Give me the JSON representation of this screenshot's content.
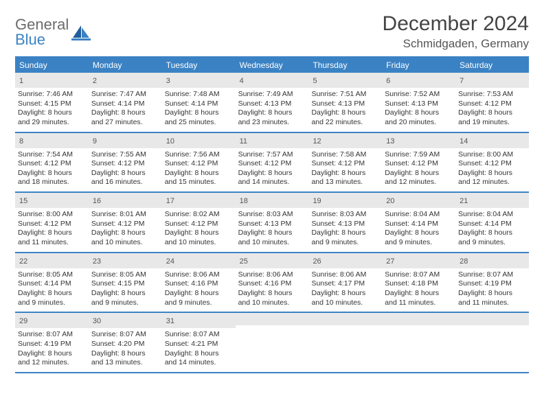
{
  "logo": {
    "word1": "General",
    "word2": "Blue"
  },
  "title": "December 2024",
  "location": "Schmidgaden, Germany",
  "colors": {
    "brand_blue": "#3b82c4",
    "header_text": "#ffffff",
    "daynum_bg": "#e8e8e8",
    "body_text": "#333333",
    "logo_gray": "#6b6b6b"
  },
  "day_headers": [
    "Sunday",
    "Monday",
    "Tuesday",
    "Wednesday",
    "Thursday",
    "Friday",
    "Saturday"
  ],
  "weeks": [
    [
      {
        "n": "1",
        "sr": "Sunrise: 7:46 AM",
        "ss": "Sunset: 4:15 PM",
        "d1": "Daylight: 8 hours",
        "d2": "and 29 minutes."
      },
      {
        "n": "2",
        "sr": "Sunrise: 7:47 AM",
        "ss": "Sunset: 4:14 PM",
        "d1": "Daylight: 8 hours",
        "d2": "and 27 minutes."
      },
      {
        "n": "3",
        "sr": "Sunrise: 7:48 AM",
        "ss": "Sunset: 4:14 PM",
        "d1": "Daylight: 8 hours",
        "d2": "and 25 minutes."
      },
      {
        "n": "4",
        "sr": "Sunrise: 7:49 AM",
        "ss": "Sunset: 4:13 PM",
        "d1": "Daylight: 8 hours",
        "d2": "and 23 minutes."
      },
      {
        "n": "5",
        "sr": "Sunrise: 7:51 AM",
        "ss": "Sunset: 4:13 PM",
        "d1": "Daylight: 8 hours",
        "d2": "and 22 minutes."
      },
      {
        "n": "6",
        "sr": "Sunrise: 7:52 AM",
        "ss": "Sunset: 4:13 PM",
        "d1": "Daylight: 8 hours",
        "d2": "and 20 minutes."
      },
      {
        "n": "7",
        "sr": "Sunrise: 7:53 AM",
        "ss": "Sunset: 4:12 PM",
        "d1": "Daylight: 8 hours",
        "d2": "and 19 minutes."
      }
    ],
    [
      {
        "n": "8",
        "sr": "Sunrise: 7:54 AM",
        "ss": "Sunset: 4:12 PM",
        "d1": "Daylight: 8 hours",
        "d2": "and 18 minutes."
      },
      {
        "n": "9",
        "sr": "Sunrise: 7:55 AM",
        "ss": "Sunset: 4:12 PM",
        "d1": "Daylight: 8 hours",
        "d2": "and 16 minutes."
      },
      {
        "n": "10",
        "sr": "Sunrise: 7:56 AM",
        "ss": "Sunset: 4:12 PM",
        "d1": "Daylight: 8 hours",
        "d2": "and 15 minutes."
      },
      {
        "n": "11",
        "sr": "Sunrise: 7:57 AM",
        "ss": "Sunset: 4:12 PM",
        "d1": "Daylight: 8 hours",
        "d2": "and 14 minutes."
      },
      {
        "n": "12",
        "sr": "Sunrise: 7:58 AM",
        "ss": "Sunset: 4:12 PM",
        "d1": "Daylight: 8 hours",
        "d2": "and 13 minutes."
      },
      {
        "n": "13",
        "sr": "Sunrise: 7:59 AM",
        "ss": "Sunset: 4:12 PM",
        "d1": "Daylight: 8 hours",
        "d2": "and 12 minutes."
      },
      {
        "n": "14",
        "sr": "Sunrise: 8:00 AM",
        "ss": "Sunset: 4:12 PM",
        "d1": "Daylight: 8 hours",
        "d2": "and 12 minutes."
      }
    ],
    [
      {
        "n": "15",
        "sr": "Sunrise: 8:00 AM",
        "ss": "Sunset: 4:12 PM",
        "d1": "Daylight: 8 hours",
        "d2": "and 11 minutes."
      },
      {
        "n": "16",
        "sr": "Sunrise: 8:01 AM",
        "ss": "Sunset: 4:12 PM",
        "d1": "Daylight: 8 hours",
        "d2": "and 10 minutes."
      },
      {
        "n": "17",
        "sr": "Sunrise: 8:02 AM",
        "ss": "Sunset: 4:12 PM",
        "d1": "Daylight: 8 hours",
        "d2": "and 10 minutes."
      },
      {
        "n": "18",
        "sr": "Sunrise: 8:03 AM",
        "ss": "Sunset: 4:13 PM",
        "d1": "Daylight: 8 hours",
        "d2": "and 10 minutes."
      },
      {
        "n": "19",
        "sr": "Sunrise: 8:03 AM",
        "ss": "Sunset: 4:13 PM",
        "d1": "Daylight: 8 hours",
        "d2": "and 9 minutes."
      },
      {
        "n": "20",
        "sr": "Sunrise: 8:04 AM",
        "ss": "Sunset: 4:14 PM",
        "d1": "Daylight: 8 hours",
        "d2": "and 9 minutes."
      },
      {
        "n": "21",
        "sr": "Sunrise: 8:04 AM",
        "ss": "Sunset: 4:14 PM",
        "d1": "Daylight: 8 hours",
        "d2": "and 9 minutes."
      }
    ],
    [
      {
        "n": "22",
        "sr": "Sunrise: 8:05 AM",
        "ss": "Sunset: 4:14 PM",
        "d1": "Daylight: 8 hours",
        "d2": "and 9 minutes."
      },
      {
        "n": "23",
        "sr": "Sunrise: 8:05 AM",
        "ss": "Sunset: 4:15 PM",
        "d1": "Daylight: 8 hours",
        "d2": "and 9 minutes."
      },
      {
        "n": "24",
        "sr": "Sunrise: 8:06 AM",
        "ss": "Sunset: 4:16 PM",
        "d1": "Daylight: 8 hours",
        "d2": "and 9 minutes."
      },
      {
        "n": "25",
        "sr": "Sunrise: 8:06 AM",
        "ss": "Sunset: 4:16 PM",
        "d1": "Daylight: 8 hours",
        "d2": "and 10 minutes."
      },
      {
        "n": "26",
        "sr": "Sunrise: 8:06 AM",
        "ss": "Sunset: 4:17 PM",
        "d1": "Daylight: 8 hours",
        "d2": "and 10 minutes."
      },
      {
        "n": "27",
        "sr": "Sunrise: 8:07 AM",
        "ss": "Sunset: 4:18 PM",
        "d1": "Daylight: 8 hours",
        "d2": "and 11 minutes."
      },
      {
        "n": "28",
        "sr": "Sunrise: 8:07 AM",
        "ss": "Sunset: 4:19 PM",
        "d1": "Daylight: 8 hours",
        "d2": "and 11 minutes."
      }
    ],
    [
      {
        "n": "29",
        "sr": "Sunrise: 8:07 AM",
        "ss": "Sunset: 4:19 PM",
        "d1": "Daylight: 8 hours",
        "d2": "and 12 minutes."
      },
      {
        "n": "30",
        "sr": "Sunrise: 8:07 AM",
        "ss": "Sunset: 4:20 PM",
        "d1": "Daylight: 8 hours",
        "d2": "and 13 minutes."
      },
      {
        "n": "31",
        "sr": "Sunrise: 8:07 AM",
        "ss": "Sunset: 4:21 PM",
        "d1": "Daylight: 8 hours",
        "d2": "and 14 minutes."
      },
      null,
      null,
      null,
      null
    ]
  ]
}
